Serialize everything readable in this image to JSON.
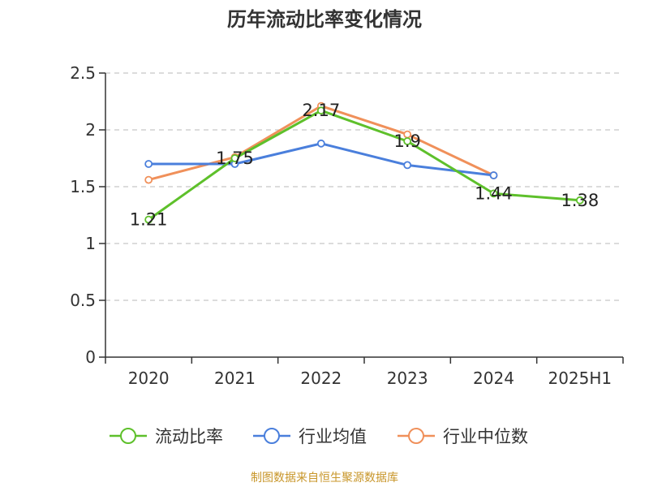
{
  "title": "历年流动比率变化情况",
  "footer": "制图数据来自恒生聚源数据库",
  "chart_data": {
    "type": "line",
    "categories": [
      "2020",
      "2021",
      "2022",
      "2023",
      "2024",
      "2025H1"
    ],
    "ylim": [
      0,
      2.5
    ],
    "yticks": [
      "0",
      "0.5",
      "1",
      "1.5",
      "2",
      "2.5"
    ],
    "grid": true,
    "legend_position": "bottom",
    "series": [
      {
        "name": "流动比率",
        "color": "#5ec02b",
        "values": [
          1.21,
          1.75,
          2.17,
          1.9,
          1.44,
          1.38
        ],
        "labels": [
          "1.21",
          "1.75",
          "2.17",
          "1.9",
          "1.44",
          "1.38"
        ]
      },
      {
        "name": "行业均值",
        "color": "#4a7fdc",
        "values": [
          1.7,
          1.7,
          1.88,
          1.69,
          1.6,
          null
        ]
      },
      {
        "name": "行业中位数",
        "color": "#f0905a",
        "values": [
          1.56,
          1.76,
          2.21,
          1.96,
          1.6,
          null
        ]
      }
    ]
  }
}
